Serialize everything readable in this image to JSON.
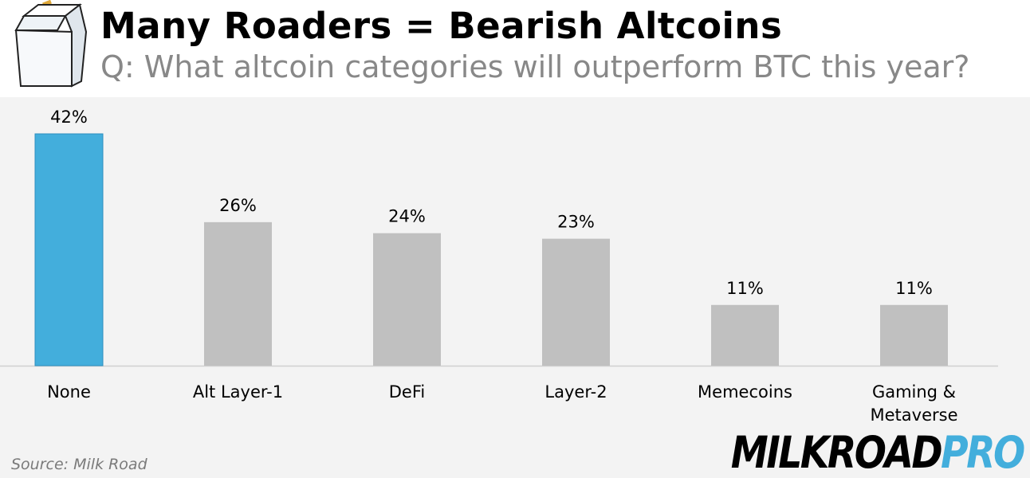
{
  "header": {
    "title": "Many Roaders = Bearish Altcoins",
    "subtitle": "Q: What altcoin categories will outperform BTC this year?",
    "logo_icon": "milk-carton-icon"
  },
  "footer": {
    "source": "Source: Milk Road",
    "brand_main": "MILKROAD",
    "brand_accent": "PRO"
  },
  "colors": {
    "highlight": "#43aedc",
    "default_bar": "#c0c0c0",
    "subtitle": "#888888",
    "brand_accent": "#43aedc"
  },
  "chart_data": {
    "type": "bar",
    "categories": [
      "None",
      "Alt Layer-1",
      "DeFi",
      "Layer-2",
      "Memecoins",
      "Gaming & Metaverse"
    ],
    "category_lines": [
      [
        "None"
      ],
      [
        "Alt Layer-1"
      ],
      [
        "DeFi"
      ],
      [
        "Layer-2"
      ],
      [
        "Memecoins"
      ],
      [
        "Gaming &",
        "Metaverse"
      ]
    ],
    "values": [
      42,
      26,
      24,
      23,
      11,
      11
    ],
    "value_labels": [
      "42%",
      "26%",
      "24%",
      "23%",
      "11%",
      "11%"
    ],
    "highlight_index": 0,
    "title": "Many Roaders = Bearish Altcoins",
    "xlabel": "",
    "ylabel": "",
    "ylim": [
      0,
      42
    ],
    "grid": false,
    "legend": "none"
  }
}
